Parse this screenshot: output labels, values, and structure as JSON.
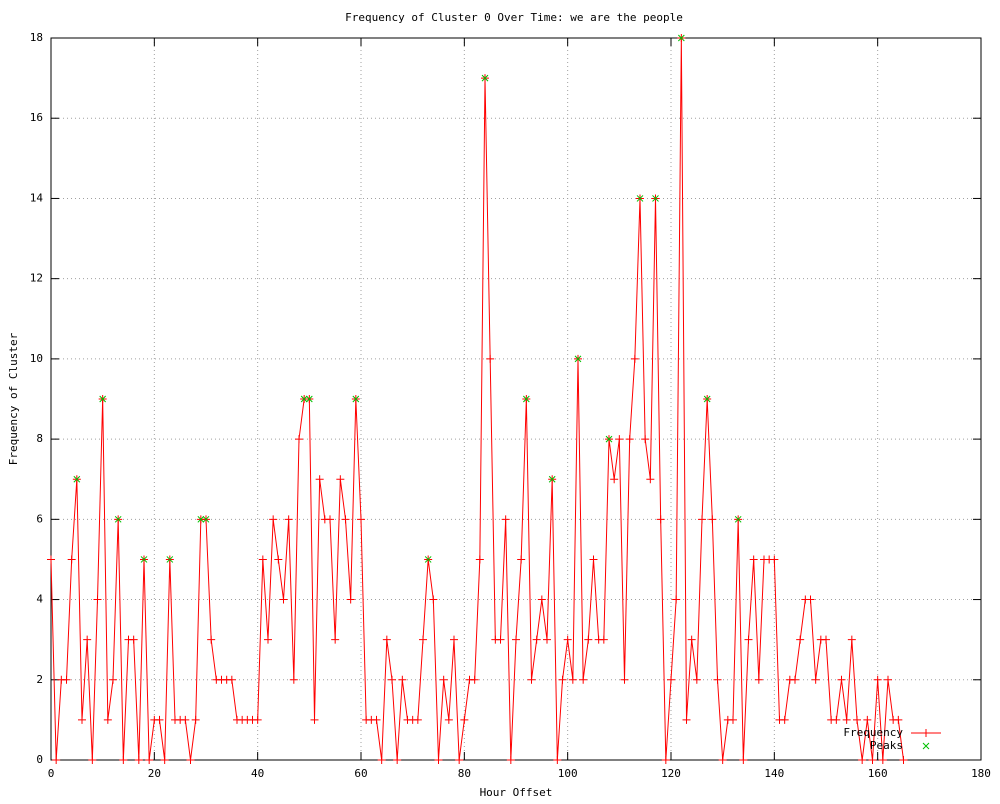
{
  "chart_data": {
    "type": "line",
    "title": "Frequency of Cluster 0 Over Time: we are the people",
    "x_label": "Hour Offset",
    "y_label": "Frequency of Cluster",
    "xlim": [
      0,
      180
    ],
    "xticks": [
      0,
      20,
      40,
      60,
      80,
      100,
      120,
      140,
      160,
      180
    ],
    "ylim": [
      0,
      18
    ],
    "yticks": [
      0,
      2,
      4,
      6,
      8,
      10,
      12,
      14,
      16,
      18
    ],
    "grid": true,
    "legend": "bottom-right",
    "series": [
      {
        "name": "Frequency",
        "color": "#ff0000",
        "marker": "plus",
        "x": [
          0,
          1,
          2,
          3,
          4,
          5,
          6,
          7,
          8,
          9,
          10,
          11,
          12,
          13,
          14,
          15,
          16,
          17,
          18,
          19,
          20,
          21,
          22,
          23,
          24,
          25,
          26,
          27,
          28,
          29,
          30,
          31,
          32,
          33,
          34,
          35,
          36,
          37,
          38,
          39,
          40,
          41,
          42,
          43,
          44,
          45,
          46,
          47,
          48,
          49,
          50,
          51,
          52,
          53,
          54,
          55,
          56,
          57,
          58,
          59,
          60,
          61,
          62,
          63,
          64,
          65,
          66,
          67,
          68,
          69,
          70,
          71,
          72,
          73,
          74,
          75,
          76,
          77,
          78,
          79,
          80,
          81,
          82,
          83,
          84,
          85,
          86,
          87,
          88,
          89,
          90,
          91,
          92,
          93,
          94,
          95,
          96,
          97,
          98,
          99,
          100,
          101,
          102,
          103,
          104,
          105,
          106,
          107,
          108,
          109,
          110,
          111,
          112,
          113,
          114,
          115,
          116,
          117,
          118,
          119,
          120,
          121,
          122,
          123,
          124,
          125,
          126,
          127,
          128,
          129,
          130,
          131,
          132,
          133,
          134,
          135,
          136,
          137,
          138,
          139,
          140,
          141,
          142,
          143,
          144,
          145,
          146,
          147,
          148,
          149,
          150,
          151,
          152,
          153,
          154,
          155,
          156,
          157,
          158,
          159,
          160,
          161,
          162,
          163,
          164,
          165
        ],
        "values": [
          5,
          0,
          2,
          2,
          5,
          7,
          1,
          3,
          0,
          4,
          9,
          1,
          2,
          6,
          0,
          3,
          3,
          0,
          5,
          0,
          1,
          1,
          0,
          5,
          1,
          1,
          1,
          0,
          1,
          6,
          6,
          3,
          2,
          2,
          2,
          2,
          1,
          1,
          1,
          1,
          1,
          5,
          3,
          6,
          5,
          4,
          6,
          2,
          8,
          9,
          9,
          1,
          7,
          6,
          6,
          3,
          7,
          6,
          4,
          9,
          6,
          1,
          1,
          1,
          0,
          3,
          2,
          0,
          2,
          1,
          1,
          1,
          3,
          5,
          4,
          0,
          2,
          1,
          3,
          0,
          1,
          2,
          2,
          5,
          17,
          10,
          3,
          3,
          6,
          0,
          3,
          5,
          9,
          2,
          3,
          4,
          3,
          7,
          0,
          2,
          3,
          2,
          10,
          2,
          3,
          5,
          3,
          3,
          8,
          7,
          8,
          2,
          8,
          10,
          14,
          8,
          7,
          14,
          6,
          0,
          2,
          4,
          18,
          1,
          3,
          2,
          6,
          9,
          6,
          2,
          0,
          1,
          1,
          6,
          0,
          3,
          5,
          2,
          5,
          5,
          5,
          1,
          1,
          2,
          2,
          3,
          4,
          4,
          2,
          3,
          3,
          1,
          1,
          2,
          1,
          3,
          1,
          0,
          1,
          0,
          2,
          0,
          2,
          1,
          1,
          0
        ]
      },
      {
        "name": "Peaks",
        "color": "#00c000",
        "marker": "cross",
        "x": [
          5,
          10,
          13,
          18,
          23,
          29,
          30,
          49,
          50,
          59,
          73,
          84,
          92,
          97,
          102,
          108,
          114,
          117,
          122,
          127,
          133
        ],
        "values": [
          7,
          9,
          6,
          5,
          5,
          6,
          6,
          9,
          9,
          9,
          5,
          17,
          9,
          7,
          10,
          8,
          14,
          14,
          18,
          9,
          6
        ]
      }
    ]
  }
}
